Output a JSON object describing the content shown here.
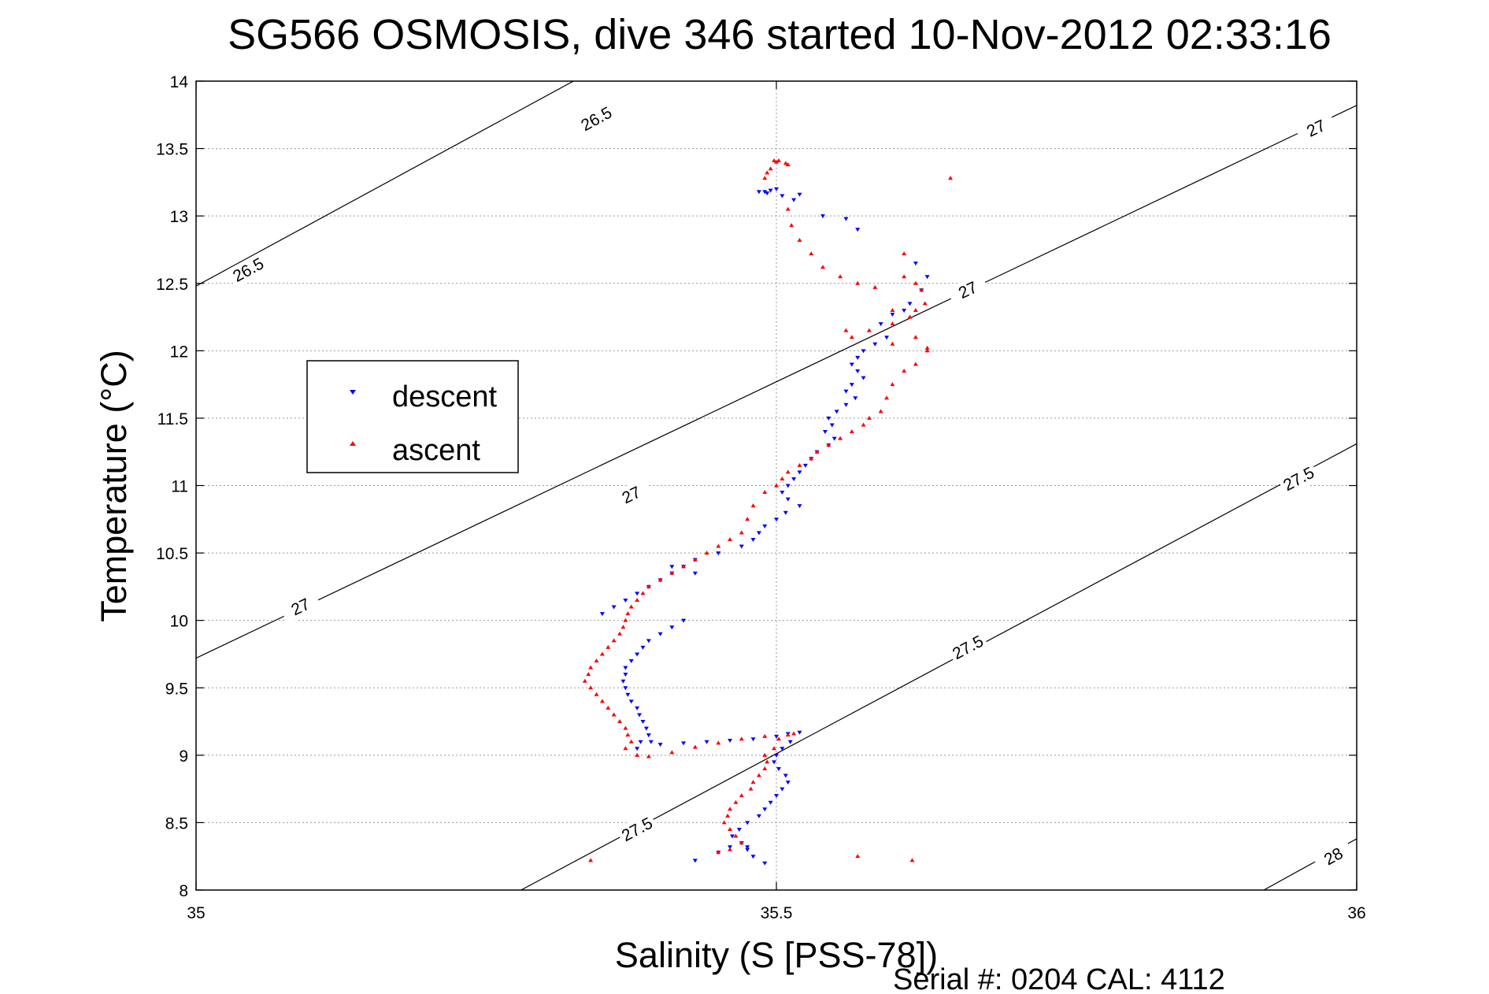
{
  "chart_data": {
    "type": "scatter",
    "title": "SG566 OSMOSIS, dive 346 started 10-Nov-2012 02:33:16",
    "xlabel": "Salinity (S [PSS-78])",
    "ylabel": "Temperature (°C)",
    "xlim": [
      35,
      36
    ],
    "ylim": [
      8,
      14
    ],
    "x_ticks": [
      "35",
      "35.5",
      "36"
    ],
    "x_tick_values": [
      35,
      35.5,
      36
    ],
    "y_ticks": [
      "8",
      "8.5",
      "9",
      "9.5",
      "10",
      "10.5",
      "11",
      "11.5",
      "12",
      "12.5",
      "13",
      "13.5",
      "14"
    ],
    "y_tick_values": [
      8,
      8.5,
      9,
      9.5,
      10,
      10.5,
      11,
      11.5,
      12,
      12.5,
      13,
      13.5,
      14
    ],
    "grid": true,
    "legend_position": "left",
    "footer": "Serial #: 0204  CAL: 4112",
    "colors": {
      "descent": "#0000ff",
      "ascent": "#ff0000",
      "contour": "#000000",
      "grid": "#999999"
    },
    "density_contours": [
      {
        "label": "26.5",
        "points": [
          [
            35,
            12.48
          ],
          [
            35.4,
            14.35
          ]
        ],
        "labels_at": [
          [
            35.045,
            12.6
          ],
          [
            35.345,
            13.72
          ]
        ]
      },
      {
        "label": "27",
        "points": [
          [
            35,
            9.72
          ],
          [
            36,
            13.82
          ]
        ],
        "labels_at": [
          [
            35.09,
            10.1
          ],
          [
            35.375,
            10.93
          ],
          [
            35.665,
            12.45
          ],
          [
            35.965,
            13.65
          ]
        ]
      },
      {
        "label": "27.5",
        "points": [
          [
            35.28,
            8
          ],
          [
            36,
            11.31
          ]
        ],
        "labels_at": [
          [
            35.38,
            8.45
          ],
          [
            35.665,
            9.8
          ],
          [
            35.95,
            11.05
          ]
        ]
      },
      {
        "label": "28",
        "points": [
          [
            35.92,
            8
          ],
          [
            36,
            8.38
          ]
        ],
        "labels_at": [
          [
            35.98,
            8.25
          ]
        ]
      }
    ],
    "series": [
      {
        "name": "descent",
        "marker": "triangle-down",
        "points": [
          [
            35.485,
            13.18
          ],
          [
            35.49,
            13.18
          ],
          [
            35.495,
            13.19
          ],
          [
            35.5,
            13.2
          ],
          [
            35.492,
            13.17
          ],
          [
            35.505,
            13.15
          ],
          [
            35.515,
            13.12
          ],
          [
            35.52,
            13.16
          ],
          [
            35.54,
            13.0
          ],
          [
            35.56,
            12.98
          ],
          [
            35.57,
            12.9
          ],
          [
            35.62,
            12.65
          ],
          [
            35.63,
            12.55
          ],
          [
            35.625,
            12.45
          ],
          [
            35.615,
            12.35
          ],
          [
            35.61,
            12.3
          ],
          [
            35.6,
            12.27
          ],
          [
            35.59,
            12.2
          ],
          [
            35.595,
            12.1
          ],
          [
            35.585,
            12.05
          ],
          [
            35.575,
            12.0
          ],
          [
            35.57,
            11.95
          ],
          [
            35.565,
            11.9
          ],
          [
            35.57,
            11.85
          ],
          [
            35.575,
            11.8
          ],
          [
            35.565,
            11.75
          ],
          [
            35.56,
            11.7
          ],
          [
            35.568,
            11.65
          ],
          [
            35.56,
            11.6
          ],
          [
            35.552,
            11.55
          ],
          [
            35.545,
            11.5
          ],
          [
            35.548,
            11.45
          ],
          [
            35.542,
            11.4
          ],
          [
            35.55,
            11.35
          ],
          [
            35.545,
            11.3
          ],
          [
            35.535,
            11.25
          ],
          [
            35.53,
            11.2
          ],
          [
            35.525,
            11.15
          ],
          [
            35.52,
            11.1
          ],
          [
            35.515,
            11.05
          ],
          [
            35.51,
            11.0
          ],
          [
            35.505,
            10.95
          ],
          [
            35.51,
            10.9
          ],
          [
            35.52,
            10.85
          ],
          [
            35.508,
            10.8
          ],
          [
            35.5,
            10.75
          ],
          [
            35.49,
            10.7
          ],
          [
            35.485,
            10.65
          ],
          [
            35.48,
            10.6
          ],
          [
            35.47,
            10.55
          ],
          [
            35.45,
            10.5
          ],
          [
            35.43,
            10.45
          ],
          [
            35.42,
            10.4
          ],
          [
            35.41,
            10.35
          ],
          [
            35.4,
            10.3
          ],
          [
            35.39,
            10.25
          ],
          [
            35.38,
            10.2
          ],
          [
            35.37,
            10.15
          ],
          [
            35.36,
            10.1
          ],
          [
            35.35,
            10.05
          ],
          [
            35.41,
            10.4
          ],
          [
            35.43,
            10.35
          ],
          [
            35.42,
            10.0
          ],
          [
            35.41,
            9.95
          ],
          [
            35.4,
            9.9
          ],
          [
            35.39,
            9.85
          ],
          [
            35.385,
            9.8
          ],
          [
            35.38,
            9.75
          ],
          [
            35.375,
            9.7
          ],
          [
            35.37,
            9.65
          ],
          [
            35.37,
            9.6
          ],
          [
            35.368,
            9.55
          ],
          [
            35.37,
            9.5
          ],
          [
            35.372,
            9.45
          ],
          [
            35.375,
            9.4
          ],
          [
            35.38,
            9.35
          ],
          [
            35.382,
            9.3
          ],
          [
            35.385,
            9.25
          ],
          [
            35.388,
            9.2
          ],
          [
            35.39,
            9.15
          ],
          [
            35.392,
            9.1
          ],
          [
            35.38,
            9.05
          ],
          [
            35.383,
            9.1
          ],
          [
            35.4,
            9.08
          ],
          [
            35.42,
            9.09
          ],
          [
            35.44,
            9.1
          ],
          [
            35.46,
            9.11
          ],
          [
            35.48,
            9.12
          ],
          [
            35.5,
            9.14
          ],
          [
            35.51,
            9.16
          ],
          [
            35.52,
            9.17
          ],
          [
            35.512,
            9.1
          ],
          [
            35.505,
            9.05
          ],
          [
            35.5,
            9.0
          ],
          [
            35.498,
            8.95
          ],
          [
            35.502,
            8.9
          ],
          [
            35.508,
            8.85
          ],
          [
            35.51,
            8.8
          ],
          [
            35.505,
            8.75
          ],
          [
            35.5,
            8.7
          ],
          [
            35.495,
            8.65
          ],
          [
            35.49,
            8.6
          ],
          [
            35.485,
            8.55
          ],
          [
            35.475,
            8.5
          ],
          [
            35.468,
            8.45
          ],
          [
            35.462,
            8.4
          ],
          [
            35.47,
            8.35
          ],
          [
            35.475,
            8.3
          ],
          [
            35.48,
            8.25
          ],
          [
            35.49,
            8.2
          ],
          [
            35.43,
            8.22
          ],
          [
            35.45,
            8.28
          ],
          [
            35.46,
            8.32
          ],
          [
            35.475,
            8.32
          ]
        ]
      },
      {
        "name": "ascent",
        "marker": "triangle-up",
        "points": [
          [
            35.498,
            13.41
          ],
          [
            35.5,
            13.4
          ],
          [
            35.502,
            13.41
          ],
          [
            35.508,
            13.39
          ],
          [
            35.495,
            13.35
          ],
          [
            35.492,
            13.32
          ],
          [
            35.49,
            13.28
          ],
          [
            35.51,
            13.38
          ],
          [
            35.51,
            13.05
          ],
          [
            35.513,
            12.93
          ],
          [
            35.52,
            12.82
          ],
          [
            35.53,
            12.72
          ],
          [
            35.54,
            12.62
          ],
          [
            35.555,
            12.55
          ],
          [
            35.57,
            12.5
          ],
          [
            35.585,
            12.47
          ],
          [
            35.61,
            12.72
          ],
          [
            35.61,
            12.55
          ],
          [
            35.62,
            12.5
          ],
          [
            35.625,
            12.45
          ],
          [
            35.628,
            12.35
          ],
          [
            35.62,
            12.3
          ],
          [
            35.615,
            12.25
          ],
          [
            35.6,
            12.3
          ],
          [
            35.62,
            12.1
          ],
          [
            35.6,
            12.2
          ],
          [
            35.58,
            12.15
          ],
          [
            35.56,
            12.15
          ],
          [
            35.565,
            12.1
          ],
          [
            35.6,
            12.05
          ],
          [
            35.63,
            12.0
          ],
          [
            35.63,
            12.02
          ],
          [
            35.62,
            11.9
          ],
          [
            35.61,
            11.85
          ],
          [
            35.6,
            11.75
          ],
          [
            35.595,
            11.65
          ],
          [
            35.59,
            11.55
          ],
          [
            35.58,
            11.5
          ],
          [
            35.575,
            11.45
          ],
          [
            35.565,
            11.4
          ],
          [
            35.555,
            11.35
          ],
          [
            35.545,
            11.3
          ],
          [
            35.535,
            11.25
          ],
          [
            35.53,
            11.2
          ],
          [
            35.52,
            11.15
          ],
          [
            35.51,
            11.1
          ],
          [
            35.505,
            11.05
          ],
          [
            35.5,
            11.0
          ],
          [
            35.49,
            10.95
          ],
          [
            35.48,
            10.85
          ],
          [
            35.475,
            10.75
          ],
          [
            35.47,
            10.65
          ],
          [
            35.46,
            10.6
          ],
          [
            35.45,
            10.55
          ],
          [
            35.44,
            10.5
          ],
          [
            35.43,
            10.45
          ],
          [
            35.42,
            10.4
          ],
          [
            35.41,
            10.35
          ],
          [
            35.4,
            10.3
          ],
          [
            35.39,
            10.25
          ],
          [
            35.385,
            10.2
          ],
          [
            35.38,
            10.15
          ],
          [
            35.375,
            10.1
          ],
          [
            35.372,
            10.05
          ],
          [
            35.37,
            10.0
          ],
          [
            35.368,
            9.95
          ],
          [
            35.365,
            9.9
          ],
          [
            35.36,
            9.85
          ],
          [
            35.355,
            9.8
          ],
          [
            35.35,
            9.75
          ],
          [
            35.345,
            9.7
          ],
          [
            35.34,
            9.65
          ],
          [
            35.338,
            9.6
          ],
          [
            35.335,
            9.55
          ],
          [
            35.34,
            9.5
          ],
          [
            35.345,
            9.45
          ],
          [
            35.35,
            9.4
          ],
          [
            35.355,
            9.35
          ],
          [
            35.36,
            9.3
          ],
          [
            35.365,
            9.25
          ],
          [
            35.37,
            9.2
          ],
          [
            35.372,
            9.15
          ],
          [
            35.375,
            9.1
          ],
          [
            35.37,
            9.05
          ],
          [
            35.38,
            9.0
          ],
          [
            35.39,
            8.99
          ],
          [
            35.41,
            9.02
          ],
          [
            35.43,
            9.06
          ],
          [
            35.45,
            9.09
          ],
          [
            35.47,
            9.12
          ],
          [
            35.49,
            9.14
          ],
          [
            35.51,
            9.15
          ],
          [
            35.515,
            9.16
          ],
          [
            35.502,
            9.12
          ],
          [
            35.498,
            9.05
          ],
          [
            35.49,
            9.0
          ],
          [
            35.492,
            8.95
          ],
          [
            35.49,
            8.9
          ],
          [
            35.485,
            8.85
          ],
          [
            35.48,
            8.8
          ],
          [
            35.478,
            8.75
          ],
          [
            35.47,
            8.7
          ],
          [
            35.465,
            8.65
          ],
          [
            35.46,
            8.6
          ],
          [
            35.458,
            8.55
          ],
          [
            35.455,
            8.5
          ],
          [
            35.46,
            8.45
          ],
          [
            35.465,
            8.4
          ],
          [
            35.47,
            8.35
          ],
          [
            35.46,
            8.3
          ],
          [
            35.45,
            8.28
          ],
          [
            35.34,
            8.22
          ],
          [
            35.57,
            8.25
          ],
          [
            35.617,
            8.22
          ],
          [
            35.65,
            13.28
          ]
        ]
      }
    ]
  }
}
